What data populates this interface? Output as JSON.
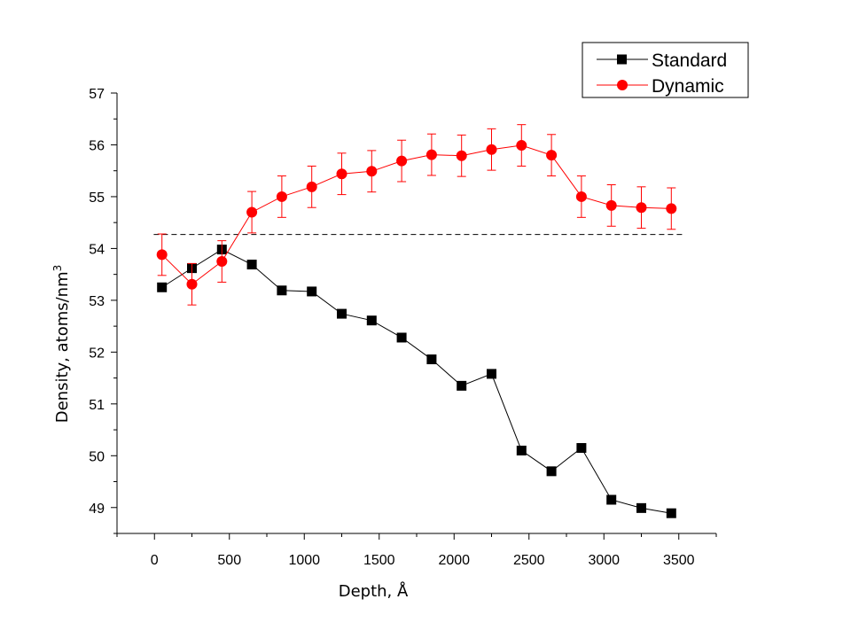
{
  "chart_data": {
    "type": "scatter",
    "xlabel": "Depth, Å",
    "ylabel": "Density, atoms/nm",
    "ylabel_superscript": "3",
    "xlim": [
      -250,
      3750
    ],
    "ylim": [
      48.5,
      57
    ],
    "x_ticks": [
      "0",
      "500",
      "1000",
      "1500",
      "2000",
      "2500",
      "3000",
      "3500"
    ],
    "y_ticks": [
      "49",
      "50",
      "51",
      "52",
      "53",
      "54",
      "55",
      "56",
      "57"
    ],
    "grid": false,
    "legend_position": "top-right",
    "reference_line": {
      "y": 54.27,
      "style": "dashed",
      "color": "#000000"
    },
    "series": [
      {
        "name": "Standard",
        "marker": "square",
        "color": "#000000",
        "x": [
          50,
          250,
          450,
          650,
          850,
          1050,
          1250,
          1450,
          1650,
          1850,
          2050,
          2250,
          2450,
          2650,
          2850,
          3050,
          3250,
          3450
        ],
        "y": [
          53.25,
          53.62,
          53.98,
          53.69,
          53.19,
          53.17,
          52.74,
          52.61,
          52.28,
          51.86,
          51.35,
          51.58,
          50.1,
          49.7,
          50.15,
          49.15,
          48.99,
          48.89
        ]
      },
      {
        "name": "Dynamic",
        "marker": "circle",
        "color": "#ff0000",
        "x": [
          50,
          250,
          450,
          650,
          850,
          1050,
          1250,
          1450,
          1650,
          1850,
          2050,
          2250,
          2450,
          2650,
          2850,
          3050,
          3250,
          3450
        ],
        "y": [
          53.88,
          53.31,
          53.75,
          54.7,
          55.0,
          55.19,
          55.44,
          55.49,
          55.69,
          55.81,
          55.79,
          55.91,
          55.99,
          55.8,
          55.0,
          54.83,
          54.79,
          54.77
        ],
        "error": [
          0.4,
          0.4,
          0.4,
          0.4,
          0.4,
          0.4,
          0.4,
          0.4,
          0.4,
          0.4,
          0.4,
          0.4,
          0.4,
          0.4,
          0.4,
          0.4,
          0.4,
          0.4
        ]
      }
    ]
  }
}
